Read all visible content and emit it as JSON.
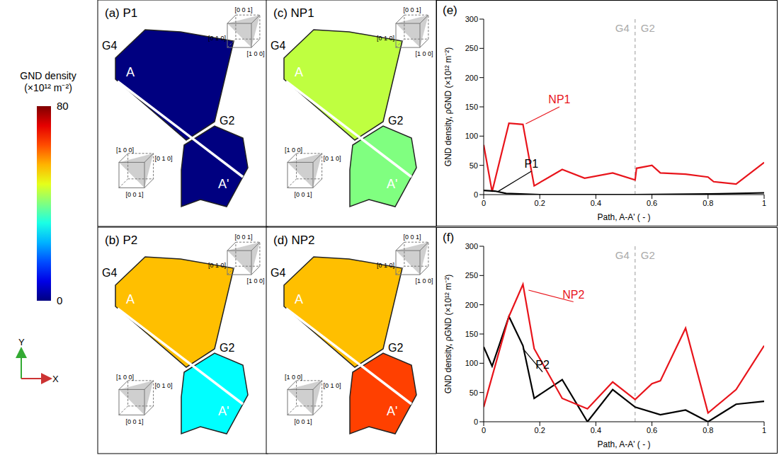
{
  "colorbar": {
    "title": [
      "GND density",
      "(×10¹² m⁻²)"
    ],
    "range": [
      0,
      80
    ],
    "ticks": [
      0,
      80
    ]
  },
  "axes_indicator": {
    "x": "X",
    "y": "Y"
  },
  "cube_labels": {
    "G4": [
      "[0 0 1]",
      "[0 1 0]",
      "[1 0 0]"
    ],
    "G2": [
      "[1 0 0]",
      "[0 1 0]",
      "[0 0 1]"
    ]
  },
  "maps": [
    {
      "title": "(a) P1",
      "path": [
        "A",
        "A'"
      ],
      "grains": [
        {
          "name": "G4",
          "gnd_density": 0
        },
        {
          "name": "G2",
          "gnd_density": 0
        }
      ]
    },
    {
      "title": "(b) P2",
      "path": [
        "A",
        "A'"
      ],
      "grains": [
        {
          "name": "G4",
          "gnd_density": 55
        },
        {
          "name": "G2",
          "gnd_density": 30
        }
      ]
    },
    {
      "title": "(c) NP1",
      "path": [
        "A",
        "A'"
      ],
      "grains": [
        {
          "name": "G4",
          "gnd_density": 45
        },
        {
          "name": "G2",
          "gnd_density": 40
        }
      ]
    },
    {
      "title": "(d) NP2",
      "path": [
        "A",
        "A'"
      ],
      "grains": [
        {
          "name": "G4",
          "gnd_density": 55
        },
        {
          "name": "G2",
          "gnd_density": 65
        }
      ]
    }
  ],
  "chart_data": [
    {
      "type": "line",
      "title": "(e)",
      "x_label": "Path, A-A' ( - )",
      "y_label": "GND density, ρGND (×10¹² m⁻²)",
      "xlim": [
        0,
        1
      ],
      "xticks": [
        0,
        0.2,
        0.4,
        0.6,
        0.8,
        1
      ],
      "ylim": [
        0,
        300
      ],
      "yticks": [
        0,
        50,
        100,
        150,
        200,
        250,
        300
      ],
      "boundary": {
        "x": 0.54,
        "labels": [
          "G4",
          "G2"
        ]
      },
      "series": [
        {
          "name": "NP1",
          "color": "#e8141b",
          "x": [
            0,
            0.03,
            0.09,
            0.14,
            0.18,
            0.28,
            0.36,
            0.46,
            0.54,
            0.545,
            0.6,
            0.63,
            0.72,
            0.8,
            0.82,
            0.9,
            1
          ],
          "values": [
            85,
            5,
            122,
            120,
            15,
            43,
            28,
            37,
            25,
            45,
            50,
            37,
            35,
            30,
            22,
            18,
            55
          ]
        },
        {
          "name": "P1",
          "color": "#000000",
          "x": [
            0,
            0.04,
            0.08,
            0.2,
            0.54,
            0.8,
            1
          ],
          "values": [
            7,
            6,
            2,
            0,
            0,
            1,
            3
          ]
        }
      ],
      "annotations": [
        {
          "text": "NP1",
          "x": 0.27,
          "y": 150,
          "arrow_to": [
            0.15,
            121
          ],
          "color": "#e8141b"
        },
        {
          "text": "P1",
          "x": 0.17,
          "y": 40,
          "arrow_to": [
            0.05,
            5
          ],
          "color": "#000000"
        }
      ]
    },
    {
      "type": "line",
      "title": "(f)",
      "x_label": "Path, A-A' ( - )",
      "y_label": "GND density, ρGND (×10¹² m⁻²)",
      "xlim": [
        0,
        1
      ],
      "xticks": [
        0,
        0.2,
        0.4,
        0.6,
        0.8,
        1
      ],
      "ylim": [
        0,
        300
      ],
      "yticks": [
        0,
        50,
        100,
        150,
        200,
        250,
        300
      ],
      "boundary": {
        "x": 0.54,
        "labels": [
          "G4",
          "G2"
        ]
      },
      "series": [
        {
          "name": "P2",
          "color": "#000000",
          "x": [
            0,
            0.03,
            0.09,
            0.14,
            0.18,
            0.28,
            0.37,
            0.46,
            0.54,
            0.63,
            0.72,
            0.8,
            0.9,
            1
          ],
          "values": [
            128,
            95,
            180,
            130,
            40,
            72,
            0,
            55,
            25,
            12,
            20,
            0,
            30,
            35
          ]
        },
        {
          "name": "NP2",
          "color": "#e8141b",
          "x": [
            0,
            0.02,
            0.09,
            0.14,
            0.18,
            0.28,
            0.37,
            0.46,
            0.54,
            0.6,
            0.63,
            0.72,
            0.8,
            0.9,
            1
          ],
          "values": [
            25,
            60,
            180,
            235,
            125,
            40,
            22,
            68,
            38,
            65,
            70,
            160,
            15,
            55,
            130
          ]
        }
      ],
      "annotations": [
        {
          "text": "NP2",
          "x": 0.32,
          "y": 205,
          "arrow_to": [
            0.16,
            225
          ],
          "color": "#e8141b"
        },
        {
          "text": "P2",
          "x": 0.21,
          "y": 85,
          "arrow_to": [
            0.14,
            125
          ],
          "color": "#000000"
        }
      ]
    }
  ]
}
